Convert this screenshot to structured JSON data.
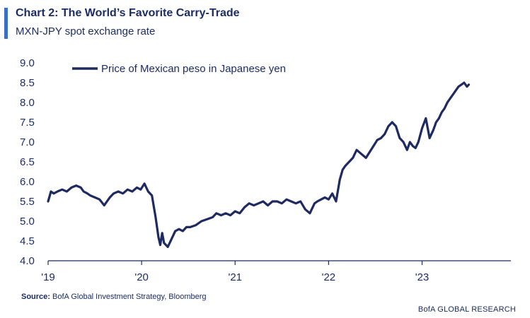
{
  "header": {
    "title": "Chart 2: The World’s Favorite Carry-Trade",
    "subtitle": "MXN-JPY spot exchange rate"
  },
  "source": {
    "label": "Source:",
    "text": "BofA Global Investment Strategy, Bloomberg"
  },
  "footer": {
    "brand": "BofA GLOBAL RESEARCH"
  },
  "colors": {
    "accent_bar": "#3b6fc4",
    "series_line": "#1f2a60",
    "axis": "#1f2a60"
  },
  "chart_data": {
    "type": "line",
    "title": "Chart 2: The World’s Favorite Carry-Trade",
    "subtitle": "MXN-JPY spot exchange rate",
    "xlabel": "",
    "ylabel": "",
    "ylim": [
      4.0,
      9.0
    ],
    "yticks": [
      "9.0",
      "8.5",
      "8.0",
      "7.5",
      "7.0",
      "6.5",
      "6.0",
      "5.5",
      "5.0",
      "4.5",
      "4.0"
    ],
    "xlim": [
      2019.0,
      2023.95
    ],
    "xticks": [
      {
        "value": 2019,
        "label": "'19"
      },
      {
        "value": 2020,
        "label": "'20"
      },
      {
        "value": 2021,
        "label": "'21"
      },
      {
        "value": 2022,
        "label": "'22"
      },
      {
        "value": 2023,
        "label": "'23"
      }
    ],
    "grid": false,
    "legend_position": "top-left",
    "series": [
      {
        "name": "Price of Mexican peso in Japanese yen",
        "color": "#1f2a60",
        "x": [
          2019.0,
          2019.03,
          2019.06,
          2019.1,
          2019.15,
          2019.2,
          2019.25,
          2019.3,
          2019.35,
          2019.38,
          2019.42,
          2019.45,
          2019.5,
          2019.55,
          2019.6,
          2019.63,
          2019.66,
          2019.7,
          2019.75,
          2019.8,
          2019.85,
          2019.9,
          2019.95,
          2019.99,
          2020.03,
          2020.07,
          2020.11,
          2020.15,
          2020.18,
          2020.2,
          2020.22,
          2020.24,
          2020.26,
          2020.28,
          2020.3,
          2020.33,
          2020.36,
          2020.4,
          2020.44,
          2020.48,
          2020.52,
          2020.58,
          2020.64,
          2020.7,
          2020.76,
          2020.8,
          2020.85,
          2020.9,
          2020.95,
          2021.0,
          2021.05,
          2021.1,
          2021.15,
          2021.2,
          2021.25,
          2021.3,
          2021.35,
          2021.4,
          2021.45,
          2021.5,
          2021.55,
          2021.6,
          2021.65,
          2021.7,
          2021.75,
          2021.8,
          2021.85,
          2021.88,
          2021.92,
          2021.96,
          2022.0,
          2022.04,
          2022.08,
          2022.12,
          2022.15,
          2022.18,
          2022.22,
          2022.26,
          2022.3,
          2022.35,
          2022.4,
          2022.44,
          2022.48,
          2022.52,
          2022.56,
          2022.6,
          2022.64,
          2022.68,
          2022.72,
          2022.76,
          2022.8,
          2022.84,
          2022.87,
          2022.9,
          2022.93,
          2022.96,
          2023.0,
          2023.04,
          2023.08,
          2023.12,
          2023.15,
          2023.18,
          2023.21,
          2023.24,
          2023.27,
          2023.3,
          2023.33,
          2023.36,
          2023.39,
          2023.42,
          2023.45,
          2023.48,
          2023.5
        ],
        "values": [
          5.5,
          5.75,
          5.7,
          5.75,
          5.8,
          5.75,
          5.85,
          5.9,
          5.85,
          5.75,
          5.7,
          5.65,
          5.6,
          5.55,
          5.4,
          5.5,
          5.6,
          5.7,
          5.75,
          5.7,
          5.8,
          5.75,
          5.85,
          5.8,
          5.95,
          5.75,
          5.65,
          5.1,
          4.6,
          4.4,
          4.7,
          4.45,
          4.4,
          4.35,
          4.45,
          4.6,
          4.75,
          4.8,
          4.75,
          4.85,
          4.85,
          4.9,
          5.0,
          5.05,
          5.1,
          5.2,
          5.15,
          5.2,
          5.15,
          5.25,
          5.2,
          5.35,
          5.45,
          5.4,
          5.45,
          5.5,
          5.4,
          5.5,
          5.5,
          5.45,
          5.55,
          5.5,
          5.45,
          5.5,
          5.3,
          5.2,
          5.45,
          5.5,
          5.55,
          5.6,
          5.55,
          5.7,
          5.5,
          6.05,
          6.3,
          6.4,
          6.5,
          6.6,
          6.8,
          6.7,
          6.6,
          6.75,
          6.9,
          7.05,
          7.1,
          7.2,
          7.4,
          7.5,
          7.4,
          7.1,
          7.0,
          6.8,
          7.0,
          6.9,
          6.85,
          7.0,
          7.35,
          7.6,
          7.1,
          7.3,
          7.5,
          7.6,
          7.75,
          7.85,
          8.0,
          8.1,
          8.2,
          8.3,
          8.4,
          8.45,
          8.5,
          8.4,
          8.45
        ]
      }
    ]
  }
}
